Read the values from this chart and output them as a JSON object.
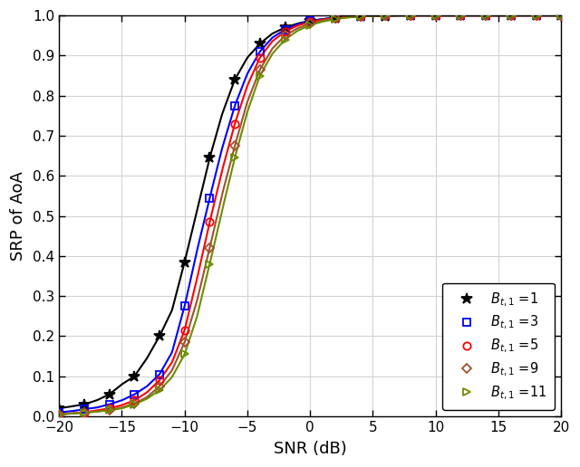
{
  "title": "",
  "xlabel": "SNR (dB)",
  "ylabel": "SRP of AoA",
  "xlim": [
    -20,
    20
  ],
  "ylim": [
    0,
    1
  ],
  "xticks": [
    -20,
    -15,
    -10,
    -5,
    0,
    5,
    10,
    15,
    20
  ],
  "yticks": [
    0,
    0.1,
    0.2,
    0.3,
    0.4,
    0.5,
    0.6,
    0.7,
    0.8,
    0.9,
    1.0
  ],
  "series": [
    {
      "label": "$B_{t,1}$ =1",
      "color": "#000000",
      "marker": "*",
      "marker_size": 9,
      "linewidth": 1.5,
      "snr": [
        -20,
        -19,
        -18,
        -17,
        -16,
        -15,
        -14,
        -13,
        -12,
        -11,
        -10,
        -9,
        -8,
        -7,
        -6,
        -5,
        -4,
        -3,
        -2,
        -1,
        0,
        1,
        2,
        3,
        4,
        5,
        6,
        7,
        8,
        9,
        10,
        12,
        14,
        16,
        18,
        20
      ],
      "srp": [
        0.02,
        0.025,
        0.03,
        0.04,
        0.055,
        0.08,
        0.1,
        0.145,
        0.2,
        0.265,
        0.385,
        0.515,
        0.645,
        0.755,
        0.84,
        0.895,
        0.93,
        0.955,
        0.97,
        0.98,
        0.987,
        0.991,
        0.994,
        0.996,
        0.998,
        0.999,
        0.999,
        1.0,
        1.0,
        1.0,
        1.0,
        1.0,
        1.0,
        1.0,
        1.0,
        1.0
      ],
      "mark_snr": [
        -20,
        -18,
        -16,
        -14,
        -12,
        -10,
        -8,
        -6,
        -4,
        -2,
        0,
        2,
        4,
        6,
        8,
        10,
        12,
        14,
        16,
        18,
        20
      ]
    },
    {
      "label": "$B_{t,1}$ =3",
      "color": "#0000FF",
      "marker": "s",
      "marker_size": 6,
      "linewidth": 1.5,
      "snr": [
        -20,
        -19,
        -18,
        -17,
        -16,
        -15,
        -14,
        -13,
        -12,
        -11,
        -10,
        -9,
        -8,
        -7,
        -6,
        -5,
        -4,
        -3,
        -2,
        -1,
        0,
        1,
        2,
        3,
        4,
        5,
        6,
        7,
        8,
        9,
        10,
        12,
        14,
        16,
        18,
        20
      ],
      "srp": [
        0.01,
        0.013,
        0.018,
        0.022,
        0.03,
        0.04,
        0.055,
        0.075,
        0.105,
        0.16,
        0.275,
        0.415,
        0.545,
        0.67,
        0.775,
        0.855,
        0.91,
        0.945,
        0.965,
        0.978,
        0.986,
        0.991,
        0.995,
        0.997,
        0.998,
        0.999,
        1.0,
        1.0,
        1.0,
        1.0,
        1.0,
        1.0,
        1.0,
        1.0,
        1.0,
        1.0
      ],
      "mark_snr": [
        -20,
        -18,
        -16,
        -14,
        -12,
        -10,
        -8,
        -6,
        -4,
        -2,
        0,
        2,
        4,
        6,
        8,
        10,
        12,
        14,
        16,
        18,
        20
      ]
    },
    {
      "label": "$B_{t,1}$ =5",
      "color": "#FF0000",
      "marker": "o",
      "marker_size": 6,
      "linewidth": 1.5,
      "snr": [
        -20,
        -19,
        -18,
        -17,
        -16,
        -15,
        -14,
        -13,
        -12,
        -11,
        -10,
        -9,
        -8,
        -7,
        -6,
        -5,
        -4,
        -3,
        -2,
        -1,
        0,
        1,
        2,
        3,
        4,
        5,
        6,
        7,
        8,
        9,
        10,
        12,
        14,
        16,
        18,
        20
      ],
      "srp": [
        0.005,
        0.008,
        0.01,
        0.015,
        0.02,
        0.028,
        0.04,
        0.06,
        0.09,
        0.135,
        0.215,
        0.345,
        0.485,
        0.615,
        0.73,
        0.825,
        0.895,
        0.936,
        0.96,
        0.975,
        0.984,
        0.99,
        0.994,
        0.997,
        0.998,
        0.999,
        1.0,
        1.0,
        1.0,
        1.0,
        1.0,
        1.0,
        1.0,
        1.0,
        1.0,
        1.0
      ],
      "mark_snr": [
        -20,
        -18,
        -16,
        -14,
        -12,
        -10,
        -8,
        -6,
        -4,
        -2,
        0,
        2,
        4,
        6,
        8,
        10,
        12,
        14,
        16,
        18,
        20
      ]
    },
    {
      "label": "$B_{t,1}$ =9",
      "color": "#A0522D",
      "marker": "D",
      "marker_size": 5,
      "linewidth": 1.5,
      "snr": [
        -20,
        -19,
        -18,
        -17,
        -16,
        -15,
        -14,
        -13,
        -12,
        -11,
        -10,
        -9,
        -8,
        -7,
        -6,
        -5,
        -4,
        -3,
        -2,
        -1,
        0,
        1,
        2,
        3,
        4,
        5,
        6,
        7,
        8,
        9,
        10,
        12,
        14,
        16,
        18,
        20
      ],
      "srp": [
        0.005,
        0.007,
        0.009,
        0.012,
        0.016,
        0.022,
        0.032,
        0.048,
        0.075,
        0.115,
        0.185,
        0.29,
        0.42,
        0.555,
        0.675,
        0.785,
        0.865,
        0.918,
        0.95,
        0.968,
        0.98,
        0.988,
        0.993,
        0.996,
        0.998,
        0.999,
        1.0,
        1.0,
        1.0,
        1.0,
        1.0,
        1.0,
        1.0,
        1.0,
        1.0,
        1.0
      ],
      "mark_snr": [
        -20,
        -18,
        -16,
        -14,
        -12,
        -10,
        -8,
        -6,
        -4,
        -2,
        0,
        2,
        4,
        6,
        8,
        10,
        12,
        14,
        16,
        18,
        20
      ]
    },
    {
      "label": "$B_{t,1}$ =11",
      "color": "#6B8E00",
      "marker": ">",
      "marker_size": 6,
      "linewidth": 1.5,
      "snr": [
        -20,
        -19,
        -18,
        -17,
        -16,
        -15,
        -14,
        -13,
        -12,
        -11,
        -10,
        -9,
        -8,
        -7,
        -6,
        -5,
        -4,
        -3,
        -2,
        -1,
        0,
        1,
        2,
        3,
        4,
        5,
        6,
        7,
        8,
        9,
        10,
        12,
        14,
        16,
        18,
        20
      ],
      "srp": [
        0.005,
        0.007,
        0.009,
        0.012,
        0.015,
        0.02,
        0.03,
        0.044,
        0.065,
        0.098,
        0.155,
        0.25,
        0.38,
        0.515,
        0.645,
        0.76,
        0.85,
        0.905,
        0.94,
        0.962,
        0.976,
        0.985,
        0.991,
        0.995,
        0.998,
        0.999,
        1.0,
        1.0,
        1.0,
        1.0,
        1.0,
        1.0,
        1.0,
        1.0,
        1.0,
        1.0
      ],
      "mark_snr": [
        -20,
        -18,
        -16,
        -14,
        -12,
        -10,
        -8,
        -6,
        -4,
        -2,
        0,
        2,
        4,
        6,
        8,
        10,
        12,
        14,
        16,
        18,
        20
      ]
    }
  ],
  "grid_color": "#d3d3d3",
  "background_color": "#ffffff"
}
